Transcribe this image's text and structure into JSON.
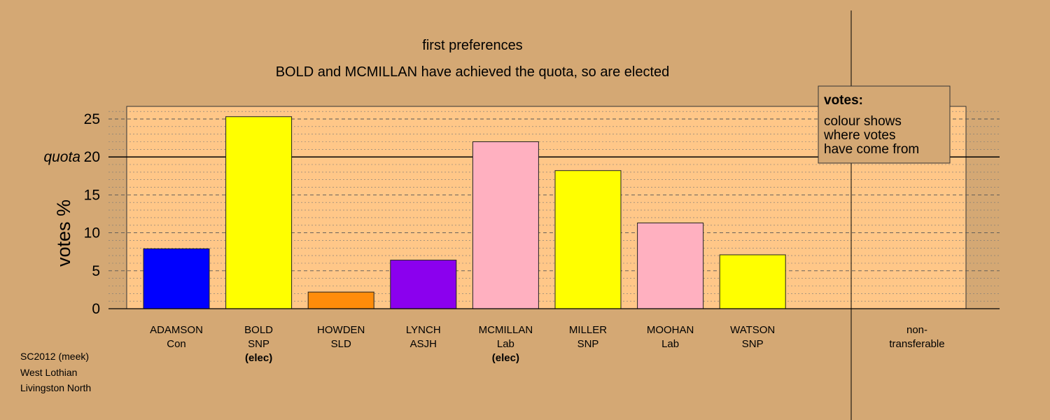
{
  "colors": {
    "background": "#D4A874",
    "plot_background": "#FFC788",
    "Con": "#0000FF",
    "SNP": "#FFFF00",
    "SLD": "#FF8C0A",
    "ASJH": "#8B00EE",
    "Lab": "#FFB0C0"
  },
  "chart_data": {
    "type": "bar",
    "title": "first preferences",
    "subtitle": "BOLD and MCMILLAN have achieved the quota, so are elected",
    "ylabel": "votes %",
    "ylim": [
      0,
      26.5
    ],
    "yticks": [
      0,
      5,
      10,
      15,
      20,
      25
    ],
    "quota": 20,
    "quota_label": "quota",
    "grid": "dotted minor lines, dashed major lines",
    "categories": [
      {
        "name": "ADAMSON",
        "party": "Con",
        "note": "",
        "value": 7.9
      },
      {
        "name": "BOLD",
        "party": "SNP",
        "note": "(elec)",
        "value": 25.3
      },
      {
        "name": "HOWDEN",
        "party": "SLD",
        "note": "",
        "value": 2.2
      },
      {
        "name": "LYNCH",
        "party": "ASJH",
        "note": "",
        "value": 6.4
      },
      {
        "name": "MCMILLAN",
        "party": "Lab",
        "note": "(elec)",
        "value": 22.0
      },
      {
        "name": "MILLER",
        "party": "SNP",
        "note": "",
        "value": 18.2
      },
      {
        "name": "MOOHAN",
        "party": "Lab",
        "note": "",
        "value": 11.3
      },
      {
        "name": "WATSON",
        "party": "SNP",
        "note": "",
        "value": 7.1
      }
    ],
    "nontransferable": {
      "label_line1": "non-",
      "label_line2": "transferable",
      "value": 0
    },
    "legend": {
      "title": "votes:",
      "lines": [
        "colour shows",
        "where votes",
        "have come from"
      ],
      "placement": "top-right"
    }
  },
  "footer": {
    "line1": "SC2012 (meek)",
    "line2": "West Lothian",
    "line3": "Livingston North"
  }
}
